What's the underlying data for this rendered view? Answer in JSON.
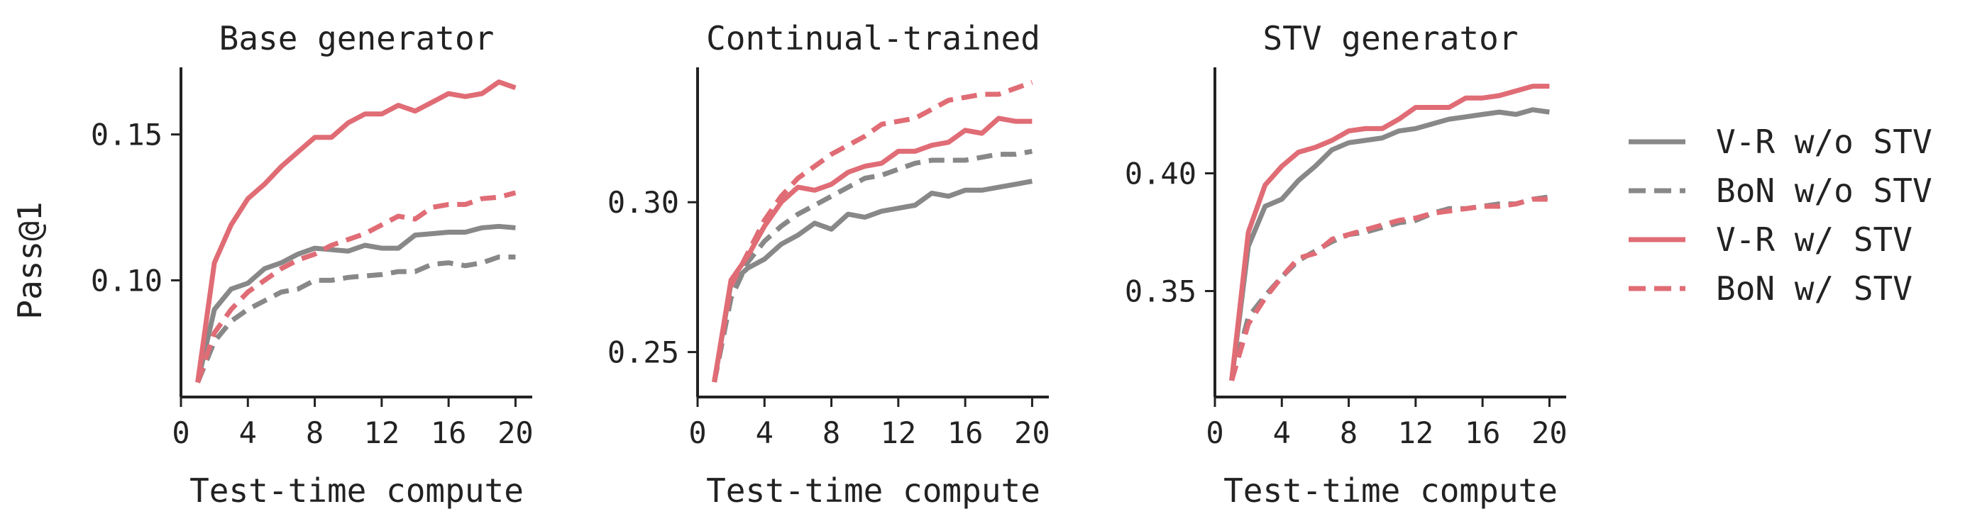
{
  "chart_data": [
    {
      "type": "line",
      "title": "Base generator",
      "xlabel": "Test-time compute",
      "ylabel": "Pass@1",
      "xlim": [
        0,
        21
      ],
      "ylim": [
        0.06,
        0.173
      ],
      "xticks": [
        0,
        4,
        8,
        12,
        16,
        20
      ],
      "yticks": [
        0.1,
        0.15
      ],
      "ytick_labels": [
        "0.10",
        "0.15"
      ],
      "x": [
        1,
        2,
        3,
        4,
        5,
        6,
        7,
        8,
        9,
        10,
        11,
        12,
        13,
        14,
        15,
        16,
        17,
        18,
        19,
        20
      ],
      "series": [
        {
          "name": "V-R w/o STV",
          "color": "#888888",
          "dash": "solid",
          "values": [
            0.065,
            0.09,
            0.097,
            0.099,
            0.104,
            0.106,
            0.109,
            0.111,
            0.1105,
            0.11,
            0.112,
            0.111,
            0.111,
            0.1155,
            0.116,
            0.1165,
            0.1165,
            0.118,
            0.1185,
            0.118
          ]
        },
        {
          "name": "BoN w/o STV",
          "color": "#888888",
          "dash": "dashed",
          "values": [
            0.065,
            0.079,
            0.086,
            0.09,
            0.093,
            0.096,
            0.097,
            0.1,
            0.1,
            0.101,
            0.1015,
            0.102,
            0.103,
            0.103,
            0.1055,
            0.106,
            0.105,
            0.106,
            0.108,
            0.108
          ]
        },
        {
          "name": "V-R w/ STV",
          "color": "#e06c75",
          "dash": "solid",
          "values": [
            0.065,
            0.106,
            0.119,
            0.128,
            0.133,
            0.139,
            0.144,
            0.149,
            0.149,
            0.154,
            0.157,
            0.157,
            0.16,
            0.158,
            0.161,
            0.164,
            0.163,
            0.164,
            0.168,
            0.166
          ]
        },
        {
          "name": "BoN w/ STV",
          "color": "#e06c75",
          "dash": "dashed",
          "values": [
            0.065,
            0.082,
            0.09,
            0.096,
            0.1,
            0.104,
            0.107,
            0.109,
            0.112,
            0.114,
            0.116,
            0.119,
            0.122,
            0.121,
            0.125,
            0.126,
            0.126,
            0.128,
            0.1285,
            0.13
          ]
        }
      ]
    },
    {
      "type": "line",
      "title": "Continual-trained",
      "xlabel": "Test-time compute",
      "ylabel": "",
      "xlim": [
        0,
        21
      ],
      "ylim": [
        0.235,
        0.345
      ],
      "xticks": [
        0,
        4,
        8,
        12,
        16,
        20
      ],
      "yticks": [
        0.25,
        0.3
      ],
      "ytick_labels": [
        "0.25",
        "0.30"
      ],
      "x": [
        1,
        2,
        3,
        4,
        5,
        6,
        7,
        8,
        9,
        10,
        11,
        12,
        13,
        14,
        15,
        16,
        17,
        18,
        19,
        20
      ],
      "series": [
        {
          "name": "V-R w/o STV",
          "color": "#888888",
          "dash": "solid",
          "values": [
            0.24,
            0.273,
            0.278,
            0.281,
            0.286,
            0.289,
            0.293,
            0.291,
            0.296,
            0.295,
            0.297,
            0.298,
            0.299,
            0.303,
            0.302,
            0.304,
            0.304,
            0.305,
            0.306,
            0.307
          ]
        },
        {
          "name": "BoN w/o STV",
          "color": "#888888",
          "dash": "dashed",
          "values": [
            0.24,
            0.268,
            0.28,
            0.287,
            0.292,
            0.296,
            0.299,
            0.302,
            0.305,
            0.308,
            0.309,
            0.311,
            0.313,
            0.314,
            0.314,
            0.314,
            0.315,
            0.316,
            0.316,
            0.317
          ]
        },
        {
          "name": "V-R w/ STV",
          "color": "#e06c75",
          "dash": "solid",
          "values": [
            0.24,
            0.274,
            0.282,
            0.292,
            0.3,
            0.305,
            0.304,
            0.306,
            0.31,
            0.312,
            0.313,
            0.317,
            0.317,
            0.319,
            0.32,
            0.324,
            0.323,
            0.328,
            0.327,
            0.327
          ]
        },
        {
          "name": "BoN w/ STV",
          "color": "#e06c75",
          "dash": "dashed",
          "values": [
            0.24,
            0.272,
            0.283,
            0.294,
            0.302,
            0.308,
            0.312,
            0.316,
            0.319,
            0.322,
            0.326,
            0.327,
            0.328,
            0.331,
            0.334,
            0.335,
            0.336,
            0.336,
            0.338,
            0.34
          ]
        }
      ]
    },
    {
      "type": "line",
      "title": "STV generator",
      "xlabel": "Test-time compute",
      "ylabel": "",
      "xlim": [
        0,
        21
      ],
      "ylim": [
        0.305,
        0.445
      ],
      "xticks": [
        0,
        4,
        8,
        12,
        16,
        20
      ],
      "yticks": [
        0.35,
        0.4
      ],
      "ytick_labels": [
        "0.35",
        "0.40"
      ],
      "x": [
        1,
        2,
        3,
        4,
        5,
        6,
        7,
        8,
        9,
        10,
        11,
        12,
        13,
        14,
        15,
        16,
        17,
        18,
        19,
        20
      ],
      "series": [
        {
          "name": "V-R w/o STV",
          "color": "#888888",
          "dash": "solid",
          "values": [
            0.312,
            0.369,
            0.386,
            0.389,
            0.397,
            0.403,
            0.41,
            0.413,
            0.414,
            0.415,
            0.418,
            0.419,
            0.421,
            0.423,
            0.424,
            0.425,
            0.426,
            0.425,
            0.427,
            0.426
          ]
        },
        {
          "name": "BoN w/o STV",
          "color": "#888888",
          "dash": "dashed",
          "values": [
            0.312,
            0.339,
            0.348,
            0.356,
            0.363,
            0.367,
            0.371,
            0.374,
            0.375,
            0.377,
            0.379,
            0.38,
            0.383,
            0.385,
            0.385,
            0.386,
            0.387,
            0.387,
            0.389,
            0.39
          ]
        },
        {
          "name": "V-R w/ STV",
          "color": "#e06c75",
          "dash": "solid",
          "values": [
            0.312,
            0.375,
            0.395,
            0.403,
            0.409,
            0.411,
            0.414,
            0.418,
            0.419,
            0.419,
            0.423,
            0.428,
            0.428,
            0.428,
            0.432,
            0.432,
            0.433,
            0.435,
            0.437,
            0.437
          ]
        },
        {
          "name": "BoN w/ STV",
          "color": "#e06c75",
          "dash": "dashed",
          "values": [
            0.312,
            0.336,
            0.347,
            0.356,
            0.364,
            0.366,
            0.372,
            0.374,
            0.376,
            0.378,
            0.38,
            0.381,
            0.383,
            0.384,
            0.385,
            0.386,
            0.386,
            0.387,
            0.389,
            0.389
          ]
        }
      ]
    }
  ],
  "legend": {
    "placement": "right",
    "entries": [
      {
        "label": "V-R w/o STV",
        "color": "#888888",
        "dash": "solid"
      },
      {
        "label": "BoN w/o STV",
        "color": "#888888",
        "dash": "dashed"
      },
      {
        "label": "V-R w/ STV",
        "color": "#e06c75",
        "dash": "solid"
      },
      {
        "label": "BoN w/ STV",
        "color": "#e06c75",
        "dash": "dashed"
      }
    ]
  }
}
